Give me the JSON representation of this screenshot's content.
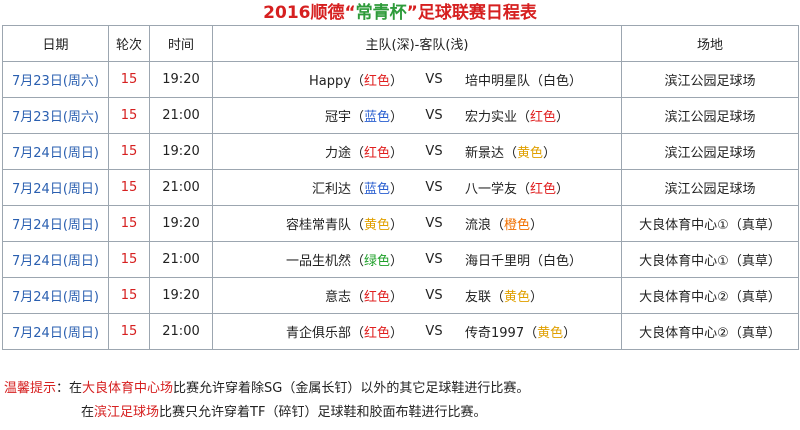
{
  "title": {
    "part1": "2016顺德“",
    "part2": "常青杯",
    "part3": "”足球联赛日程表"
  },
  "headers": {
    "date": "日期",
    "round": "轮次",
    "time": "时间",
    "match": "主队(深)-客队(浅)",
    "venue": "场地"
  },
  "matches": [
    {
      "date": "7月23日(周六)",
      "round": "15",
      "time": "19:20",
      "home": "Happy",
      "home_color": "红色",
      "home_color_class": "c-red",
      "vs": "VS",
      "away": "培中明星队",
      "away_color": "白色",
      "away_color_class": "c-white",
      "venue": "滨江公园足球场"
    },
    {
      "date": "7月23日(周六)",
      "round": "15",
      "time": "21:00",
      "home": "冠宇",
      "home_color": "蓝色",
      "home_color_class": "c-blue",
      "vs": "VS",
      "away": "宏力实业",
      "away_color": "红色",
      "away_color_class": "c-red",
      "venue": "滨江公园足球场"
    },
    {
      "date": "7月24日(周日)",
      "round": "15",
      "time": "19:20",
      "home": "力途",
      "home_color": "红色",
      "home_color_class": "c-red",
      "vs": "VS",
      "away": "新景达",
      "away_color": "黄色",
      "away_color_class": "c-yellow",
      "venue": "滨江公园足球场"
    },
    {
      "date": "7月24日(周日)",
      "round": "15",
      "time": "21:00",
      "home": "汇利达",
      "home_color": "蓝色",
      "home_color_class": "c-blue",
      "vs": "VS",
      "away": "八一学友",
      "away_color": "红色",
      "away_color_class": "c-red",
      "venue": "滨江公园足球场"
    },
    {
      "date": "7月24日(周日)",
      "round": "15",
      "time": "19:20",
      "home": "容桂常青队",
      "home_color": "黄色",
      "home_color_class": "c-yellow",
      "vs": "VS",
      "away": "流浪",
      "away_color": "橙色",
      "away_color_class": "c-orange",
      "venue": "大良体育中心①（真草）"
    },
    {
      "date": "7月24日(周日)",
      "round": "15",
      "time": "21:00",
      "home": "一品生机然",
      "home_color": "绿色",
      "home_color_class": "c-green",
      "vs": "VS",
      "away": "海日千里明",
      "away_color": "白色",
      "away_color_class": "c-white",
      "venue": "大良体育中心①（真草）"
    },
    {
      "date": "7月24日(周日)",
      "round": "15",
      "time": "19:20",
      "home": "意志",
      "home_color": "红色",
      "home_color_class": "c-red",
      "vs": "VS",
      "away": "友联",
      "away_color": "黄色",
      "away_color_class": "c-yellow",
      "venue": "大良体育中心②（真草）"
    },
    {
      "date": "7月24日(周日)",
      "round": "15",
      "time": "21:00",
      "home": "青企俱乐部",
      "home_color": "红色",
      "home_color_class": "c-red",
      "vs": "VS",
      "away": "传奇1997",
      "away_color": "黄色",
      "away_color_class": "c-yellow",
      "venue": "大良体育中心②（真草）"
    }
  ],
  "notes": {
    "label": "温馨提示",
    "line1_sep": "：在",
    "line1_venue": "大良体育中心场",
    "line1_rest": "比赛允许穿着除SG（金属长钉）以外的其它足球鞋进行比赛。",
    "line2_pre": "在",
    "line2_venue": "滨江足球场",
    "line2_rest": "比赛只允许穿着TF（碎钉）足球鞋和胶面布鞋进行比赛。"
  }
}
